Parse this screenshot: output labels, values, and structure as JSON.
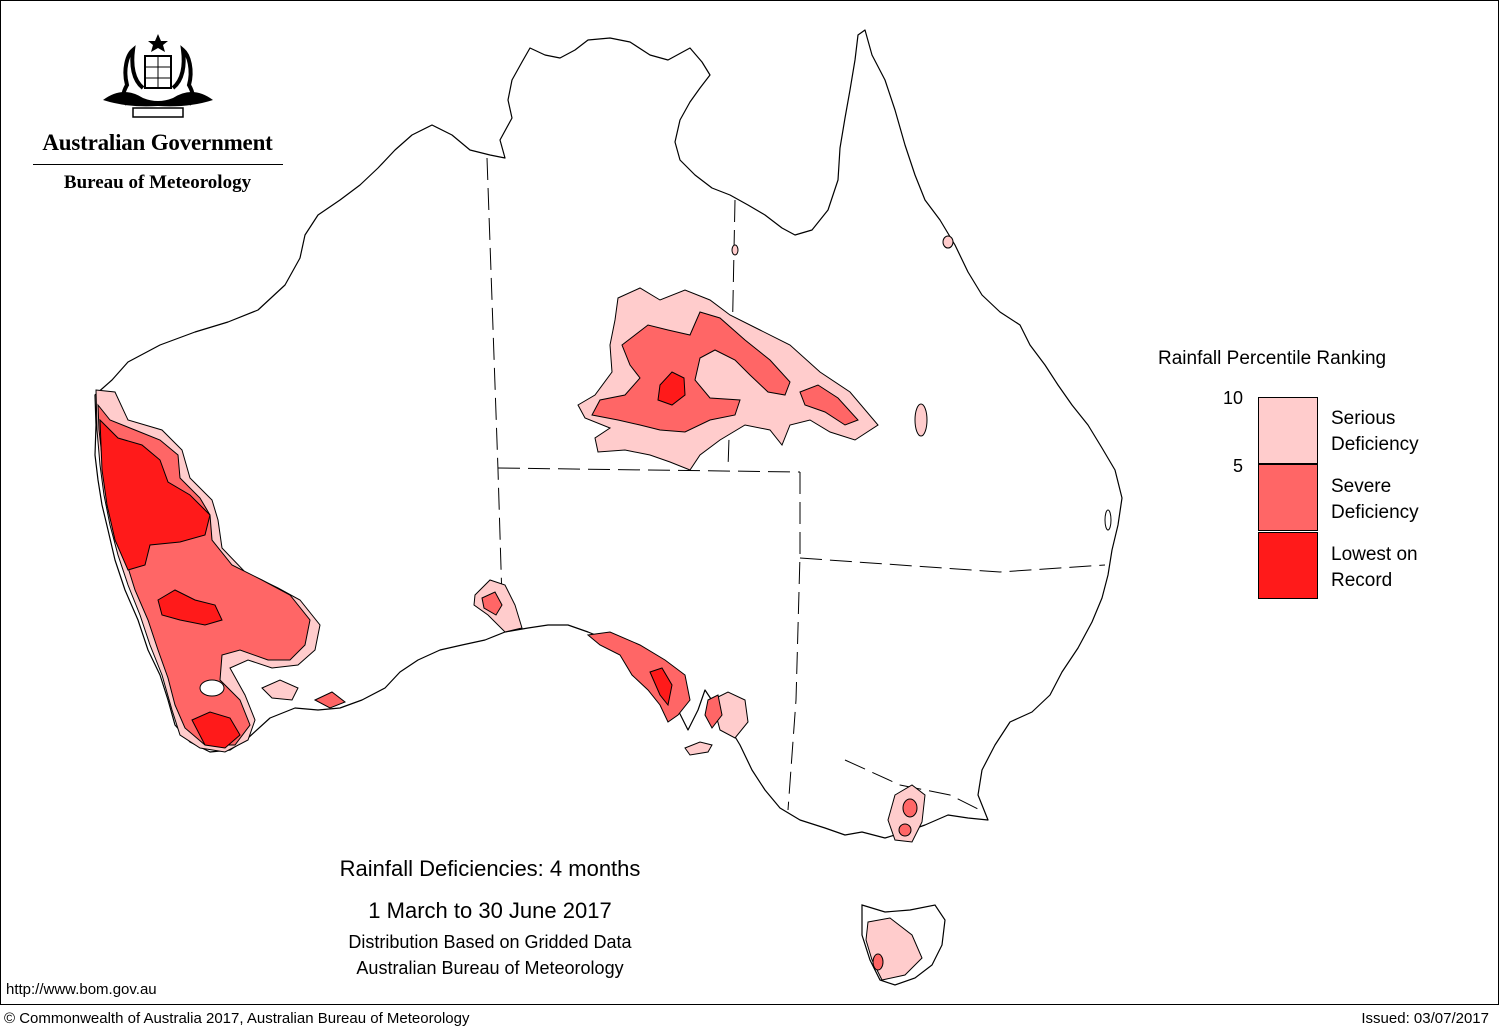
{
  "header": {
    "government_name": "Australian Government",
    "agency_name": "Bureau of Meteorology"
  },
  "legend": {
    "title": "Rainfall Percentile Ranking",
    "ticks": [
      "10",
      "5"
    ],
    "categories": [
      {
        "line1": "Serious",
        "line2": "Deficiency",
        "color": "#ffcccc"
      },
      {
        "line1": "Severe",
        "line2": "Deficiency",
        "color": "#ff6666"
      },
      {
        "line1": "Lowest on",
        "line2": "Record",
        "color": "#ff1a1a"
      }
    ]
  },
  "caption": {
    "title": "Rainfall Deficiencies: 4 months",
    "period": "1 March to 30 June 2017",
    "method": "Distribution Based on Gridded Data",
    "source": "Australian Bureau of Meteorology"
  },
  "footer": {
    "url": "http://www.bom.gov.au",
    "copyright": "© Commonwealth of Australia 2017, Australian Bureau of Meteorology",
    "issued": "Issued: 03/07/2017"
  },
  "colors": {
    "serious": "#ffcccc",
    "severe": "#ff6666",
    "lowest": "#ff1a1a",
    "outline": "#000000"
  }
}
